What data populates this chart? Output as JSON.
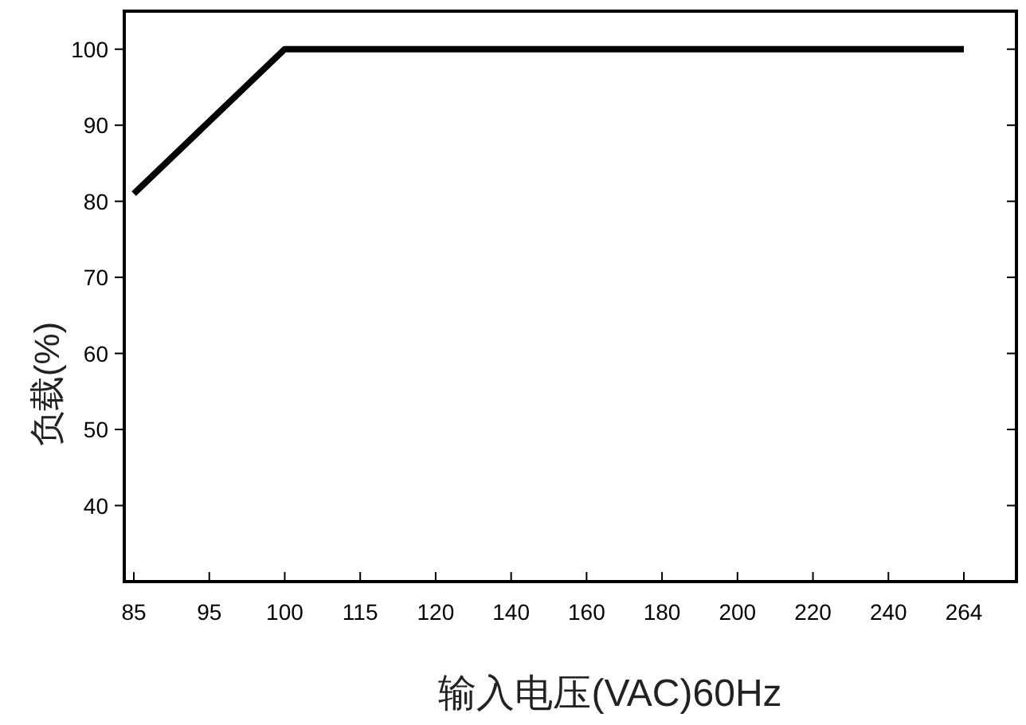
{
  "chart_data": {
    "type": "line",
    "xlabel": "输入电压(VAC)60Hz",
    "ylabel": "负载(%)",
    "categories": [
      "85",
      "95",
      "100",
      "115",
      "120",
      "140",
      "160",
      "180",
      "200",
      "220",
      "240",
      "264"
    ],
    "series": [
      {
        "color": "#000000",
        "values": [
          81,
          90.5,
          100,
          100,
          100,
          100,
          100,
          100,
          100,
          100,
          100,
          100
        ]
      }
    ],
    "ylim": [
      30,
      105
    ],
    "yticks": [
      40,
      50,
      60,
      70,
      80,
      90,
      100
    ],
    "grid": false,
    "marker": "none",
    "line_style": "solid"
  }
}
